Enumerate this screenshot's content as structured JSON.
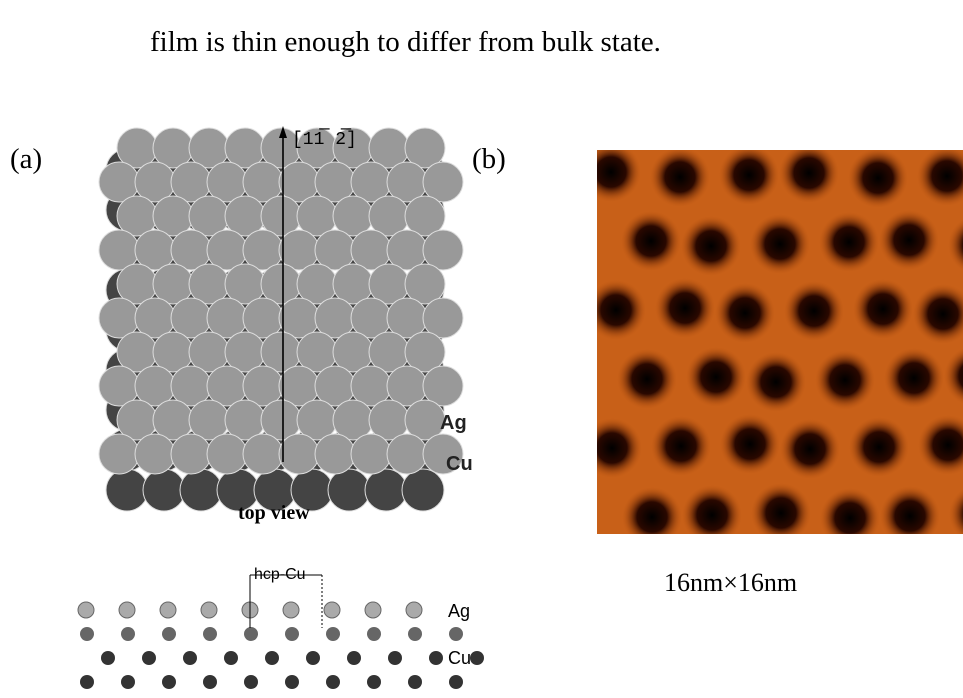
{
  "body_text": "film is thin enough to differ from bulk state.",
  "figure_a": {
    "label": "(a)",
    "direction": "[11̅ 2̅]",
    "top_labels": [
      "Ag",
      "Cu"
    ],
    "caption": "top view",
    "side_marker": "hcp-Cu",
    "side_labels": [
      "Ag",
      "Cu"
    ]
  },
  "figure_b": {
    "label": "(b)",
    "caption": "16nm×16nm"
  }
}
